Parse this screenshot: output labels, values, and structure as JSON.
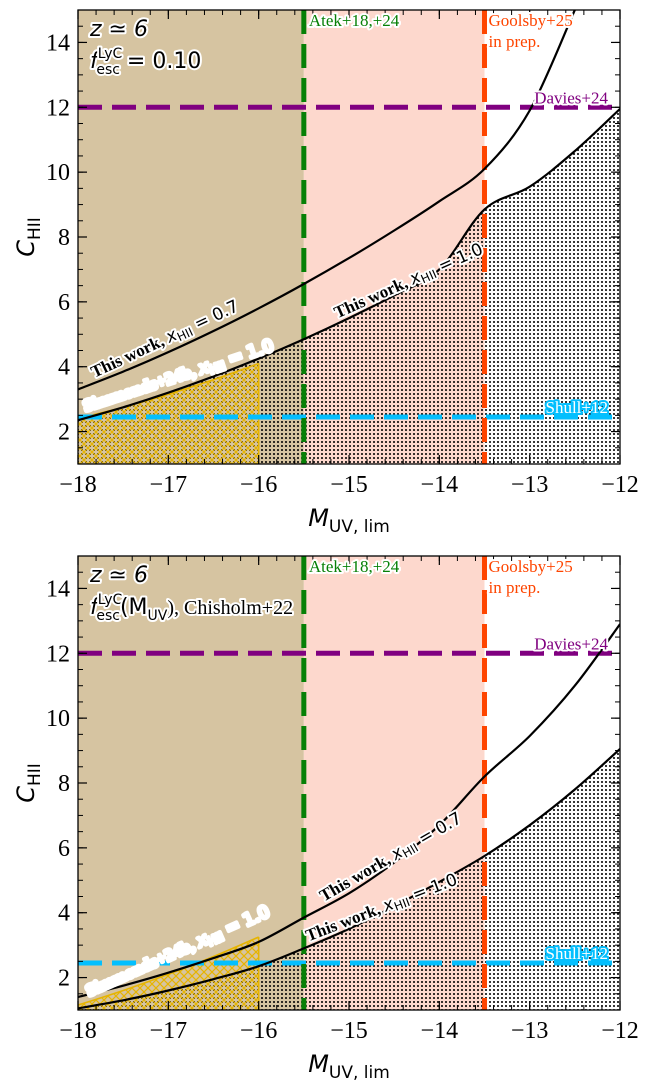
{
  "chart_data": [
    {
      "type": "line",
      "panel": "top",
      "title_lines": {
        "z": "z ≃ 6",
        "fesc": "f",
        "fesc_sup": "LyC",
        "fesc_sub": "esc",
        "fesc_suffix": " = 0.10"
      },
      "xlabel": "M_UV,lim",
      "xlabel_main": "M",
      "xlabel_sub": "UV, lim",
      "ylabel": "C_HII",
      "ylabel_main": "C",
      "ylabel_sub": "HII",
      "xlim": [
        -18,
        -12
      ],
      "ylim": [
        1,
        15
      ],
      "xticks": [
        -18,
        -17,
        -16,
        -15,
        -14,
        -13,
        -12
      ],
      "xtick_labels": [
        "−18",
        "−17",
        "−16",
        "−15",
        "−14",
        "−13",
        "−12"
      ],
      "yticks": [
        2,
        4,
        6,
        8,
        10,
        12,
        14
      ],
      "ytick_labels": [
        "2",
        "4",
        "6",
        "8",
        "10",
        "12",
        "14"
      ],
      "shaded_regions": [
        {
          "name": "tan",
          "x": [
            -18,
            -15.5
          ],
          "color": "#d6c4a1"
        },
        {
          "name": "pink",
          "x": [
            -15.5,
            -13.5
          ],
          "color": "#fdd8cd"
        }
      ],
      "vertical_lines": [
        {
          "x": -15.5,
          "label": "Atek+18,+24",
          "color": "#078007"
        },
        {
          "x": -13.5,
          "label": "Goolsby+25",
          "label2": "in prep.",
          "color": "#fe4500"
        }
      ],
      "horizontal_lines": [
        {
          "y": 12,
          "label": "Davies+24",
          "color": "#800080"
        },
        {
          "y": 2.45,
          "label": "Shull+12",
          "color": "#03bffe"
        }
      ],
      "series": [
        {
          "name": "This work, x_HII = 0.7",
          "label_text": "This work, ",
          "label_math": "x",
          "label_sub": "HII",
          "label_val": " = 0.7",
          "x": [
            -18,
            -17.5,
            -17,
            -16.5,
            -16,
            -15.5,
            -15,
            -14.5,
            -14,
            -13.5,
            -13,
            -12.5
          ],
          "y": [
            3.3,
            3.85,
            4.45,
            5.1,
            5.8,
            6.55,
            7.35,
            8.2,
            9.1,
            10.1,
            11.9,
            15.0
          ],
          "color": "#000000"
        },
        {
          "name": "This work, x_HII = 1.0",
          "label_text": "This work, ",
          "label_math": "x",
          "label_sub": "HII",
          "label_val": " = 1.0",
          "x": [
            -18,
            -17.5,
            -17,
            -16.5,
            -16,
            -15.5,
            -15,
            -14.5,
            -14,
            -13.5,
            -13,
            -12.5,
            -12
          ],
          "y": [
            2.35,
            2.75,
            3.2,
            3.7,
            4.25,
            4.85,
            5.5,
            6.2,
            7.0,
            8.85,
            9.55,
            10.65,
            11.95
          ],
          "color": "#000000"
        },
        {
          "name": "Simmonds+24b, x_HII = 1.0",
          "label_text": "Simmonds+24b, ",
          "label_math": "x",
          "label_sub": "HII",
          "label_val": " = 1.0",
          "x": [
            -18,
            -17.5,
            -17,
            -16.5,
            -16
          ],
          "y": [
            2.4,
            2.75,
            3.15,
            3.6,
            4.1
          ],
          "color": "#e6b400"
        }
      ]
    },
    {
      "type": "line",
      "panel": "bottom",
      "title_lines": {
        "z": "z ≃ 6",
        "fesc": "f",
        "fesc_sup": "LyC",
        "fesc_sub": "esc",
        "fesc_suffix": "(M",
        "fesc_mag_sub": "UV",
        "fesc_close": "), Chisholm+22"
      },
      "xlabel": "M_UV,lim",
      "xlabel_main": "M",
      "xlabel_sub": "UV, lim",
      "ylabel": "C_HII",
      "ylabel_main": "C",
      "ylabel_sub": "HII",
      "xlim": [
        -18,
        -12
      ],
      "ylim": [
        1,
        15
      ],
      "xticks": [
        -18,
        -17,
        -16,
        -15,
        -14,
        -13,
        -12
      ],
      "xtick_labels": [
        "−18",
        "−17",
        "−16",
        "−15",
        "−14",
        "−13",
        "−12"
      ],
      "yticks": [
        2,
        4,
        6,
        8,
        10,
        12,
        14
      ],
      "ytick_labels": [
        "2",
        "4",
        "6",
        "8",
        "10",
        "12",
        "14"
      ],
      "shaded_regions": [
        {
          "name": "tan",
          "x": [
            -18,
            -15.5
          ],
          "color": "#d6c4a1"
        },
        {
          "name": "pink",
          "x": [
            -15.5,
            -13.5
          ],
          "color": "#fdd8cd"
        }
      ],
      "vertical_lines": [
        {
          "x": -15.5,
          "label": "Atek+18,+24",
          "color": "#078007"
        },
        {
          "x": -13.5,
          "label": "Goolsby+25",
          "label2": "in prep.",
          "color": "#fe4500"
        }
      ],
      "horizontal_lines": [
        {
          "y": 12,
          "label": "Davies+24",
          "color": "#800080"
        },
        {
          "y": 2.45,
          "label": "Shull+12",
          "color": "#03bffe"
        }
      ],
      "series": [
        {
          "name": "This work, x_HII = 0.7",
          "label_text": "This work, ",
          "label_math": "x",
          "label_sub": "HII",
          "label_val": " = 0.7",
          "x": [
            -18,
            -17.5,
            -17,
            -16.5,
            -16,
            -15.5,
            -15,
            -14.5,
            -14,
            -13.5,
            -13,
            -12.5,
            -12
          ],
          "y": [
            1.4,
            1.75,
            2.15,
            2.6,
            3.1,
            3.85,
            4.6,
            5.55,
            6.7,
            8.2,
            9.45,
            11.0,
            12.9
          ],
          "color": "#000000"
        },
        {
          "name": "This work, x_HII = 1.0",
          "label_text": "This work, ",
          "label_math": "x",
          "label_sub": "HII",
          "label_val": " = 1.0",
          "x": [
            -18,
            -17.5,
            -17,
            -16.5,
            -16,
            -15.5,
            -15,
            -14.5,
            -14,
            -13.5,
            -13,
            -12.5,
            -12
          ],
          "y": [
            1.05,
            1.3,
            1.6,
            1.95,
            2.35,
            2.9,
            3.5,
            4.2,
            4.95,
            5.75,
            6.7,
            7.8,
            9.05
          ],
          "color": "#000000"
        },
        {
          "name": "Simmonds+24b, x_HII = 1.0",
          "label_text": "Simmonds+24b, ",
          "label_math": "x",
          "label_sub": "HII",
          "label_val": " = 1.0",
          "x": [
            -18,
            -17.5,
            -17,
            -16.5,
            -16
          ],
          "y": [
            1.15,
            1.6,
            2.1,
            2.65,
            3.25
          ],
          "color": "#e6b400"
        }
      ]
    }
  ]
}
